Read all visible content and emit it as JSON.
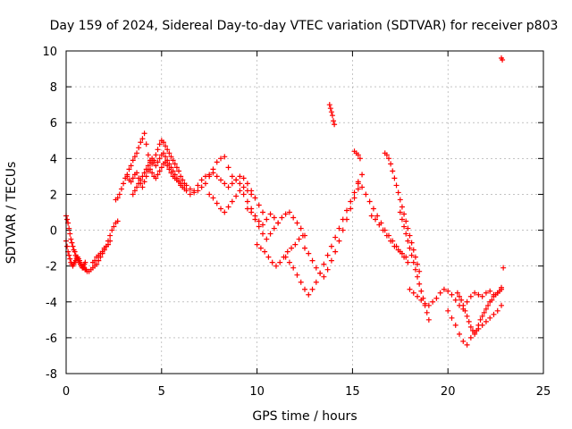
{
  "chart_data": {
    "type": "scatter",
    "title": "Day 159 of 2024, Sidereal Day-to-day VTEC variation (SDTVAR) for receiver p803",
    "xlabel": "GPS time / hours",
    "ylabel": "SDTVAR / TECUs",
    "xlim": [
      0,
      25
    ],
    "ylim": [
      -8,
      10
    ],
    "xticks": [
      "0",
      "5",
      "10",
      "15",
      "20",
      "25"
    ],
    "yticks": [
      "-8",
      "-6",
      "-4",
      "-2",
      "0",
      "2",
      "4",
      "6",
      "8",
      "10"
    ],
    "grid": true,
    "marker": "plus",
    "color": "#ff0000",
    "series": [
      {
        "name": "SDTVAR",
        "x": [
          0.0,
          0.05,
          0.1,
          0.15,
          0.2,
          0.25,
          0.3,
          0.35,
          0.4,
          0.45,
          0.5,
          0.55,
          0.6,
          0.65,
          0.7,
          0.75,
          0.8,
          0.85,
          0.9,
          0.95,
          1.0,
          1.05,
          1.1,
          0.0,
          0.05,
          0.1,
          0.15,
          0.2,
          0.25,
          0.3,
          0.35,
          0.4,
          0.45,
          0.5,
          0.55,
          0.6,
          0.65,
          0.7,
          0.75,
          0.8,
          0.85,
          0.9,
          0.95,
          1.0,
          1.2,
          1.3,
          1.4,
          1.5,
          1.6,
          1.7,
          1.8,
          1.9,
          2.0,
          2.1,
          2.2,
          2.3,
          2.4,
          2.5,
          2.6,
          2.7,
          1.4,
          1.5,
          1.6,
          1.7,
          1.8,
          1.9,
          2.0,
          2.1,
          2.2,
          2.3,
          2.6,
          2.7,
          2.8,
          2.9,
          3.0,
          3.1,
          3.2,
          3.3,
          3.4,
          3.5,
          3.6,
          3.7,
          3.8,
          3.9,
          4.0,
          4.1,
          4.2,
          4.3,
          4.4,
          4.5,
          4.6,
          4.7,
          4.8,
          4.9,
          5.0,
          5.1,
          5.2,
          5.3,
          5.4,
          5.5,
          5.6,
          5.7,
          5.8,
          5.9,
          6.0,
          6.1,
          6.2,
          3.2,
          3.3,
          3.4,
          3.5,
          3.6,
          3.7,
          3.8,
          3.9,
          4.0,
          4.1,
          4.2,
          4.3,
          4.4,
          4.5,
          4.6,
          4.7,
          4.8,
          4.9,
          5.0,
          5.1,
          5.2,
          5.3,
          5.4,
          5.5,
          5.6,
          5.7,
          5.8,
          5.9,
          6.0,
          3.5,
          3.6,
          3.7,
          3.8,
          3.9,
          4.0,
          4.1,
          4.2,
          4.3,
          4.4,
          4.5,
          4.6,
          4.7,
          4.8,
          4.9,
          5.0,
          5.1,
          5.2,
          5.3,
          5.4,
          5.5,
          5.6,
          5.7,
          5.8,
          5.9,
          6.0,
          6.1,
          6.2,
          6.3,
          6.3,
          6.5,
          6.7,
          6.9,
          7.1,
          7.3,
          7.5,
          7.7,
          7.9,
          8.1,
          8.3,
          8.5,
          8.7,
          8.9,
          9.1,
          9.3,
          9.5,
          9.7,
          9.9,
          6.5,
          6.7,
          6.9,
          7.1,
          7.3,
          7.5,
          7.7,
          7.9,
          8.1,
          8.3,
          8.5,
          8.7,
          8.9,
          9.1,
          9.3,
          9.5,
          9.7,
          9.9,
          10.1,
          10.3,
          7.5,
          7.7,
          7.9,
          8.1,
          8.3,
          8.5,
          8.7,
          8.9,
          9.1,
          9.3,
          9.5,
          9.7,
          9.9,
          10.1,
          10.3,
          10.5,
          10.7,
          10.9,
          11.1,
          9.5,
          9.7,
          9.9,
          10.1,
          10.3,
          10.5,
          10.7,
          10.9,
          11.1,
          11.3,
          11.5,
          11.7,
          11.9,
          12.1,
          12.3,
          12.5,
          10.0,
          10.2,
          10.4,
          10.6,
          10.8,
          11.0,
          11.2,
          11.4,
          11.6,
          11.8,
          12.0,
          12.2,
          12.4,
          11.5,
          11.7,
          11.9,
          12.1,
          12.3,
          12.5,
          12.7,
          12.9,
          13.1,
          13.3,
          13.5,
          13.7,
          13.9,
          14.1,
          14.3,
          14.5,
          14.7,
          14.9,
          15.1,
          15.3,
          15.5,
          12.5,
          12.7,
          12.9,
          13.1,
          13.3,
          13.5,
          13.7,
          13.9,
          14.1,
          14.3,
          14.5,
          14.7,
          14.9,
          15.1,
          15.3,
          13.8,
          13.85,
          13.9,
          13.95,
          14.0,
          14.05,
          15.1,
          15.2,
          15.3,
          15.4,
          15.3,
          15.5,
          15.7,
          15.9,
          16.1,
          16.3,
          16.5,
          16.7,
          16.9,
          17.1,
          17.3,
          17.5,
          17.7,
          17.9,
          16.0,
          16.2,
          16.4,
          16.6,
          16.8,
          17.0,
          17.2,
          17.4,
          17.6,
          17.8,
          16.7,
          16.8,
          16.9,
          17.0,
          17.1,
          17.2,
          17.3,
          17.4,
          17.5,
          17.6,
          17.7,
          17.8,
          17.9,
          18.0,
          18.1,
          18.2,
          18.3,
          18.4,
          18.5,
          17.5,
          17.6,
          17.7,
          17.8,
          17.9,
          18.0,
          18.1,
          18.2,
          18.3,
          18.4,
          18.5,
          18.6,
          18.7,
          18.8,
          18.9,
          19.0,
          18.0,
          18.2,
          18.4,
          18.6,
          18.8,
          19.0,
          19.2,
          19.4,
          19.6,
          19.8,
          20.0,
          20.2,
          20.4,
          20.6,
          20.8,
          21.0,
          21.2,
          21.4,
          21.6,
          21.8,
          22.0,
          22.2,
          22.4,
          22.6,
          22.8,
          20.0,
          20.2,
          20.4,
          20.6,
          20.8,
          21.0,
          21.2,
          21.4,
          21.6,
          21.8,
          22.0,
          22.2,
          22.4,
          22.6,
          22.8,
          20.5,
          20.6,
          20.7,
          20.8,
          20.9,
          21.0,
          21.1,
          21.2,
          21.3,
          21.4,
          21.5,
          21.6,
          21.7,
          21.8,
          21.9,
          22.0,
          22.1,
          22.2,
          22.3,
          22.4,
          22.5,
          22.6,
          22.7,
          22.8,
          22.8,
          22.85,
          22.9
        ],
        "y": [
          0.8,
          0.6,
          0.4,
          0.1,
          -0.2,
          -0.5,
          -0.7,
          -0.9,
          -1.1,
          -1.2,
          -1.4,
          -1.5,
          -1.6,
          -1.7,
          -1.8,
          -1.9,
          -2.0,
          -2.0,
          -2.1,
          -2.1,
          -2.2,
          -2.2,
          -2.3,
          -0.6,
          -0.9,
          -1.2,
          -1.4,
          -1.6,
          -1.8,
          -1.9,
          -2.0,
          -1.9,
          -1.8,
          -1.7,
          -1.6,
          -1.5,
          -1.6,
          -1.7,
          -1.9,
          -2.0,
          -2.1,
          -2.0,
          -1.9,
          -1.8,
          -2.3,
          -2.2,
          -2.1,
          -2.0,
          -1.9,
          -1.7,
          -1.5,
          -1.3,
          -1.1,
          -0.9,
          -0.6,
          -0.3,
          0.0,
          0.2,
          0.4,
          0.5,
          -1.8,
          -1.7,
          -1.5,
          -1.4,
          -1.3,
          -1.2,
          -1.0,
          -0.9,
          -0.8,
          -0.6,
          1.7,
          1.8,
          2.0,
          2.3,
          2.6,
          2.9,
          3.1,
          3.4,
          3.6,
          3.9,
          4.1,
          4.3,
          4.6,
          4.9,
          5.1,
          5.4,
          4.8,
          4.2,
          3.9,
          3.7,
          3.9,
          4.2,
          4.5,
          4.8,
          5.0,
          4.9,
          4.7,
          4.5,
          4.3,
          4.1,
          3.9,
          3.7,
          3.5,
          3.3,
          3.0,
          2.8,
          2.6,
          3.0,
          2.8,
          2.7,
          2.9,
          3.1,
          3.2,
          2.9,
          2.6,
          2.4,
          2.7,
          3.0,
          3.3,
          3.4,
          3.2,
          3.0,
          2.9,
          3.1,
          3.3,
          3.5,
          3.7,
          3.8,
          3.6,
          3.4,
          3.2,
          3.0,
          2.9,
          2.8,
          2.7,
          2.6,
          2.0,
          2.2,
          2.4,
          2.6,
          2.8,
          3.0,
          3.2,
          3.4,
          3.6,
          3.8,
          4.0,
          3.8,
          3.6,
          3.8,
          4.0,
          4.2,
          4.3,
          4.1,
          3.9,
          3.7,
          3.5,
          3.3,
          3.1,
          2.9,
          2.7,
          2.5,
          2.4,
          2.3,
          2.2,
          2.5,
          2.3,
          2.1,
          2.2,
          2.4,
          2.6,
          3.0,
          3.4,
          3.8,
          4.0,
          4.1,
          3.5,
          3.0,
          2.8,
          2.6,
          2.4,
          2.2,
          2.0,
          1.8,
          2.0,
          2.2,
          2.5,
          2.8,
          3.0,
          3.1,
          3.2,
          3.0,
          2.8,
          2.6,
          2.4,
          2.6,
          2.8,
          3.0,
          2.9,
          2.6,
          2.2,
          1.8,
          1.4,
          1.0,
          2.0,
          1.8,
          1.5,
          1.2,
          1.0,
          1.3,
          1.6,
          1.9,
          2.2,
          2.0,
          1.6,
          1.2,
          0.8,
          0.5,
          0.3,
          0.6,
          0.9,
          0.7,
          0.4,
          1.2,
          1.0,
          0.6,
          0.2,
          -0.2,
          -0.5,
          -0.2,
          0.1,
          0.4,
          0.7,
          0.9,
          1.0,
          0.7,
          0.4,
          0.1,
          -0.3,
          -0.8,
          -1.0,
          -1.2,
          -1.5,
          -1.8,
          -2.0,
          -1.8,
          -1.5,
          -1.2,
          -1.0,
          -0.8,
          -0.5,
          -0.3,
          -1.5,
          -1.8,
          -2.1,
          -2.5,
          -2.9,
          -3.3,
          -3.6,
          -3.3,
          -2.9,
          -2.4,
          -1.9,
          -1.4,
          -0.9,
          -0.4,
          0.1,
          0.6,
          1.1,
          1.6,
          2.1,
          2.6,
          3.1,
          -1.0,
          -1.3,
          -1.7,
          -2.1,
          -2.4,
          -2.6,
          -2.2,
          -1.7,
          -1.2,
          -0.6,
          0.0,
          0.6,
          1.2,
          1.8,
          2.3,
          7.0,
          6.8,
          6.6,
          6.4,
          6.1,
          5.9,
          4.4,
          4.3,
          4.2,
          4.0,
          2.7,
          2.4,
          2.0,
          1.6,
          1.2,
          0.8,
          0.4,
          0.0,
          -0.3,
          -0.6,
          -0.9,
          -1.2,
          -1.5,
          -1.8,
          0.8,
          0.6,
          0.3,
          0.0,
          -0.3,
          -0.6,
          -0.9,
          -1.1,
          -1.3,
          -1.5,
          4.3,
          4.2,
          4.0,
          3.7,
          3.3,
          2.9,
          2.5,
          2.1,
          1.7,
          1.3,
          0.9,
          0.5,
          0.1,
          -0.3,
          -0.7,
          -1.1,
          -1.5,
          -1.9,
          -2.3,
          1.0,
          0.6,
          0.2,
          -0.2,
          -0.6,
          -1.0,
          -1.4,
          -1.8,
          -2.2,
          -2.6,
          -3.0,
          -3.4,
          -3.8,
          -4.2,
          -4.6,
          -5.0,
          -3.3,
          -3.5,
          -3.7,
          -3.9,
          -4.1,
          -4.2,
          -4.0,
          -3.8,
          -3.5,
          -3.3,
          -3.4,
          -3.6,
          -3.9,
          -4.2,
          -4.4,
          -4.0,
          -3.7,
          -3.5,
          -3.6,
          -3.7,
          -3.5,
          -3.4,
          -3.6,
          -3.5,
          -3.2,
          -4.5,
          -4.9,
          -5.3,
          -5.8,
          -6.2,
          -6.4,
          -6.0,
          -5.7,
          -5.5,
          -5.3,
          -5.1,
          -4.9,
          -4.7,
          -4.5,
          -4.2,
          -3.5,
          -3.7,
          -3.9,
          -4.2,
          -4.5,
          -4.8,
          -5.1,
          -5.4,
          -5.6,
          -5.8,
          -5.6,
          -5.3,
          -5.0,
          -4.8,
          -4.6,
          -4.4,
          -4.2,
          -4.0,
          -3.9,
          -3.7,
          -3.6,
          -3.5,
          -3.4,
          -3.3,
          9.6,
          9.5,
          -2.1
        ]
      }
    ]
  }
}
